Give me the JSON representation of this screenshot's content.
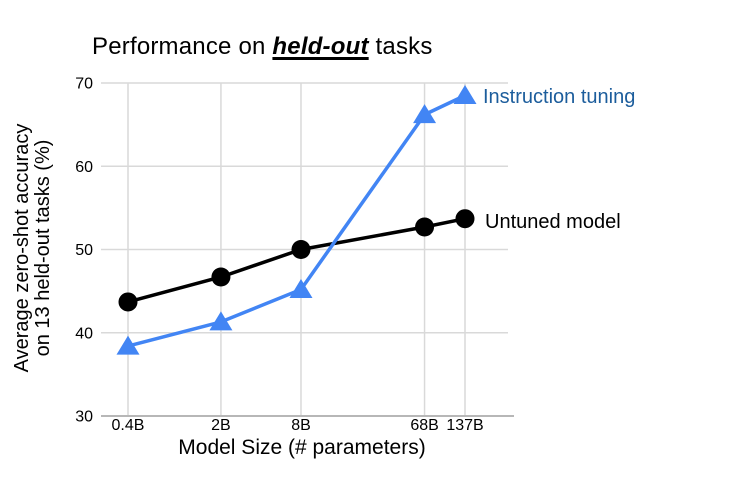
{
  "title": {
    "prefix": "Performance on ",
    "emphasis": "held-out",
    "suffix": " tasks"
  },
  "colors": {
    "background": "#ffffff",
    "text": "#000000",
    "gridline": "#d9d9d9",
    "axis_line": "#b7b7b7",
    "instruction_series": "#4285f4",
    "instruction_label": "#1c5d9c",
    "untuned_series": "#000000",
    "untuned_label": "#000000"
  },
  "chart_data": {
    "type": "line",
    "title": "Performance on held-out tasks",
    "xlabel": "Model Size (# parameters)",
    "ylabel": "Average zero-shot accuracy on 13 held-out tasks (%)",
    "ylabel_lines": [
      "Average zero-shot accuracy",
      "on 13 held-out tasks (%)"
    ],
    "x_scale": "log",
    "x_tick_labels": [
      "0.4B",
      "2B",
      "8B",
      "68B",
      "137B"
    ],
    "x_values_billions": [
      0.4,
      2,
      8,
      68,
      137
    ],
    "y_ticks": [
      30,
      40,
      50,
      60,
      70
    ],
    "ylim": [
      30,
      70
    ],
    "grid": true,
    "legend_position": "end-of-line annotations",
    "series": [
      {
        "name": "Instruction tuning",
        "marker": "triangle",
        "color": "#4285f4",
        "label_color": "#1c5d9c",
        "values": [
          38.4,
          41.3,
          45.2,
          66.2,
          68.5
        ]
      },
      {
        "name": "Untuned model",
        "marker": "circle",
        "color": "#000000",
        "label_color": "#000000",
        "values": [
          43.7,
          46.7,
          50.0,
          52.7,
          53.7
        ]
      }
    ]
  }
}
